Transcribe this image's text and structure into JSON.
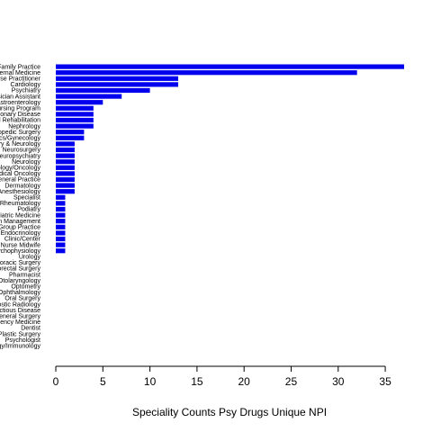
{
  "chart_data": {
    "type": "bar",
    "orientation": "horizontal",
    "title": "",
    "xlabel": "Speciality Counts Psy Drugs Unique NPI",
    "ylabel": "",
    "xlim": [
      0,
      37
    ],
    "xticks": [
      0,
      5,
      10,
      15,
      20,
      25,
      30,
      35
    ],
    "grid": false,
    "bar_color": "#0000ee",
    "categories": [
      "Family Practice",
      "Internal Medicine",
      "Nurse Practitioner",
      "Cardiology",
      "Psychiatry",
      "Physician Assistant",
      "Gastroenterology",
      "Nursing Program",
      "Pulmonary Disease",
      "Physical Medicine and Rehabilitation",
      "Nephrology",
      "Orthopedic Surgery",
      "Obstetrics/Gynecology",
      "Psychiatry & Neurology",
      "Neurosurgery",
      "Neuropsychiatry",
      "Neurology",
      "Hematology/Oncology",
      "Medical Oncology",
      "General Practice",
      "Dermatology",
      "Anesthesiology",
      "Specialist",
      "Rheumatology",
      "Podiatry",
      "Geriatric Medicine",
      "Pain Management",
      "Group Practice",
      "Endocrinology",
      "Clinic/Center",
      "Certified Nurse Midwife",
      "Clinical Neuropsychophysiology",
      "Urology",
      "Thoracic Surgery",
      "Colorectal Surgery",
      "Pharmacist",
      "Otolaryngology",
      "Optometry",
      "Ophthalmology",
      "Oral Surgery",
      "Diagnostic Radiology",
      "Infectious Disease",
      "General Surgery",
      "Emergency Medicine",
      "Dentist",
      "Plastic Surgery",
      "Psychologist",
      "Allergy/Immunology"
    ],
    "values": [
      37,
      32,
      13,
      13,
      10,
      7,
      5,
      4,
      4,
      4,
      4,
      3,
      3,
      2,
      2,
      2,
      2,
      2,
      2,
      2,
      2,
      2,
      1,
      1,
      1,
      1,
      1,
      1,
      1,
      1,
      1,
      1,
      0,
      0,
      0,
      0,
      0,
      0,
      0,
      0,
      0,
      0,
      0,
      0,
      0,
      0,
      0,
      0
    ]
  }
}
